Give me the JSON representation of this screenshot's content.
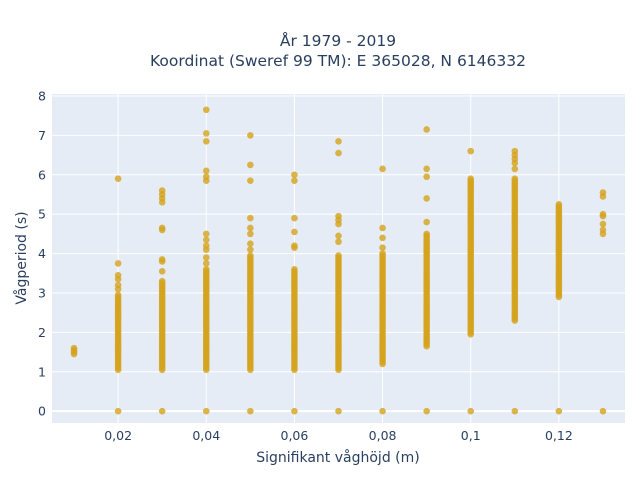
{
  "chart_data": {
    "type": "scatter",
    "title": "År 1979 - 2019",
    "subtitle": "Koordinat (Sweref 99 TM): E 365028, N 6146332",
    "xlabel": "Signifikant våghöjd (m)",
    "ylabel": "Vågperiod (s)",
    "xlim": [
      0.005,
      0.135
    ],
    "ylim": [
      -0.3,
      8.05
    ],
    "x_ticks": [
      0.02,
      0.04,
      0.06,
      0.08,
      0.1,
      0.12
    ],
    "x_tick_labels": [
      "0,02",
      "0,04",
      "0,06",
      "0,08",
      "0,1",
      "0,12"
    ],
    "y_ticks": [
      0,
      1,
      2,
      3,
      4,
      5,
      6,
      7,
      8
    ],
    "y_tick_labels": [
      "0",
      "1",
      "2",
      "3",
      "4",
      "5",
      "6",
      "7",
      "8"
    ],
    "grid": true,
    "legend": "none",
    "colors": {
      "marker": "#d4a21c",
      "plot_bg": "#e5ecf6",
      "grid": "#ffffff",
      "text": "#2a3f5f"
    },
    "columns": [
      {
        "x": 0.01,
        "ranges": [
          [
            1.45,
            1.6
          ]
        ],
        "points": []
      },
      {
        "x": 0.02,
        "ranges": [
          [
            1.05,
            2.95
          ]
        ],
        "points": [
          0,
          3.1,
          3.2,
          3.35,
          3.45,
          3.75,
          5.9
        ]
      },
      {
        "x": 0.03,
        "ranges": [
          [
            1.05,
            3.3
          ]
        ],
        "points": [
          0,
          3.55,
          3.8,
          3.85,
          4.6,
          4.65,
          5.3,
          5.4,
          5.5,
          5.6
        ]
      },
      {
        "x": 0.04,
        "ranges": [
          [
            1.05,
            3.6
          ]
        ],
        "points": [
          0,
          3.75,
          3.9,
          4.1,
          4.2,
          4.35,
          4.5,
          5.85,
          5.95,
          6.1,
          6.85,
          7.05,
          7.65
        ]
      },
      {
        "x": 0.05,
        "ranges": [
          [
            1.05,
            3.95
          ]
        ],
        "points": [
          0,
          4.1,
          4.25,
          4.5,
          4.65,
          4.9,
          5.85,
          6.25,
          7.0
        ]
      },
      {
        "x": 0.06,
        "ranges": [
          [
            1.05,
            3.6
          ]
        ],
        "points": [
          0,
          4.15,
          4.2,
          4.55,
          4.9,
          5.85,
          6.0
        ]
      },
      {
        "x": 0.07,
        "ranges": [
          [
            1.05,
            3.95
          ]
        ],
        "points": [
          0,
          4.3,
          4.45,
          4.75,
          4.85,
          4.95,
          6.55,
          6.85
        ]
      },
      {
        "x": 0.08,
        "ranges": [
          [
            1.25,
            4.0
          ]
        ],
        "points": [
          0,
          1.2,
          4.15,
          4.4,
          4.65,
          6.15
        ]
      },
      {
        "x": 0.09,
        "ranges": [
          [
            1.7,
            4.5
          ]
        ],
        "points": [
          0,
          1.65,
          4.8,
          5.4,
          5.95,
          6.15,
          7.15
        ]
      },
      {
        "x": 0.1,
        "ranges": [
          [
            1.95,
            5.9
          ]
        ],
        "points": [
          0,
          6.6
        ]
      },
      {
        "x": 0.11,
        "ranges": [
          [
            2.3,
            5.9
          ]
        ],
        "points": [
          0,
          6.15,
          6.3,
          6.4,
          6.5,
          6.6
        ]
      },
      {
        "x": 0.12,
        "ranges": [
          [
            2.9,
            5.25
          ]
        ],
        "points": [
          0
        ]
      },
      {
        "x": 0.13,
        "ranges": [],
        "points": [
          0,
          4.5,
          4.6,
          4.75,
          4.95,
          5.0,
          5.45,
          5.55
        ]
      }
    ]
  }
}
